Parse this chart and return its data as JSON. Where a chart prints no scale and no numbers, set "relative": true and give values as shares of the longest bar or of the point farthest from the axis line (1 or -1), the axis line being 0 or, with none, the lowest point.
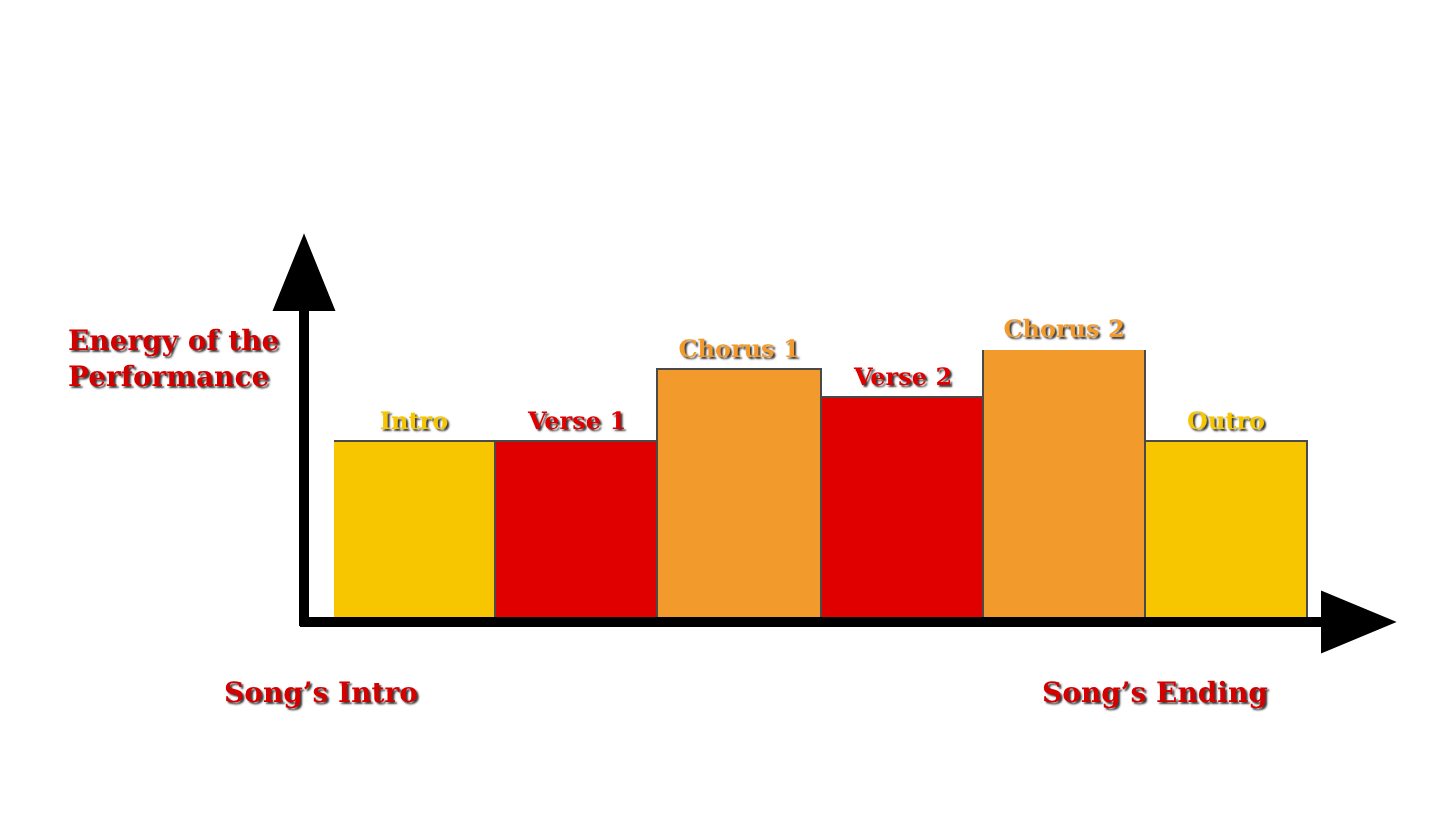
{
  "chart_data": {
    "type": "bar",
    "relative": true,
    "categories": [
      "Intro",
      "Verse 1",
      "Chorus 1",
      "Verse 2",
      "Chorus 2",
      "Outro"
    ],
    "values": [
      0.66,
      0.66,
      0.93,
      0.82,
      1,
      0.66
    ],
    "colors": [
      "#f7c600",
      "#e00000",
      "#f39a2c",
      "#e00000",
      "#f39a2c",
      "#f7c600"
    ],
    "ylabel": "Energy of the Performance",
    "annotations": [
      "Song’s Intro",
      "Song’s Ending"
    ],
    "tick_labels": false
  }
}
